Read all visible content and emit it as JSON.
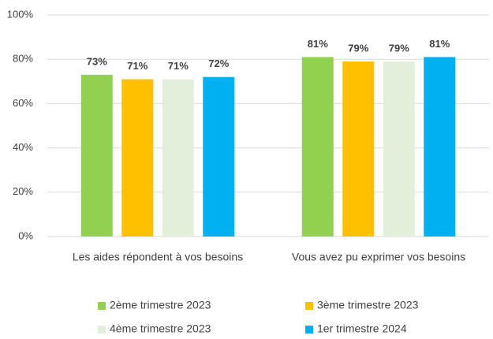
{
  "chart_data": {
    "type": "bar",
    "categories": [
      "Les aides répondent à vos besoins",
      "Vous avez pu exprimer vos besoins"
    ],
    "series": [
      {
        "name": "2ème trimestre 2023",
        "color": "#92d050",
        "values": [
          73,
          81
        ],
        "value_labels": [
          "73%",
          "81%"
        ]
      },
      {
        "name": "3ème trimestre 2023",
        "color": "#ffc000",
        "values": [
          71,
          79
        ],
        "value_labels": [
          "71%",
          "79%"
        ]
      },
      {
        "name": "4ème trimestre 2023",
        "color": "#e2efda",
        "values": [
          71,
          79
        ],
        "value_labels": [
          "71%",
          "79%"
        ]
      },
      {
        "name": "1er trimestre 2024",
        "color": "#00b0f0",
        "values": [
          72,
          81
        ],
        "value_labels": [
          "72%",
          "81%"
        ]
      }
    ],
    "ylim": [
      0,
      100
    ],
    "yticks": [
      {
        "value": 0,
        "label": "0%"
      },
      {
        "value": 20,
        "label": "20%"
      },
      {
        "value": 40,
        "label": "40%"
      },
      {
        "value": 60,
        "label": "60%"
      },
      {
        "value": 80,
        "label": "80%"
      },
      {
        "value": 100,
        "label": "100%"
      }
    ],
    "grid": true,
    "legend": "bottom"
  }
}
